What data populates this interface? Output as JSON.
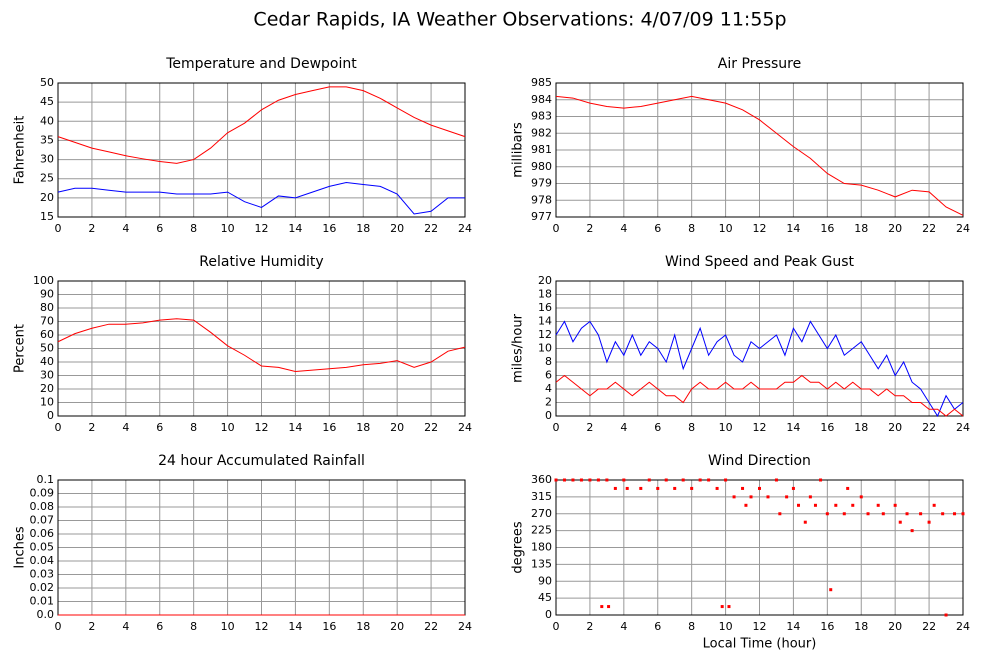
{
  "title": "Cedar Rapids, IA Weather Observations: 4/07/09 11:55p",
  "chart_data": [
    {
      "type": "line",
      "title": "Temperature and Dewpoint",
      "ylabel": "Fahrenheit",
      "x": [
        0,
        1,
        2,
        3,
        4,
        5,
        6,
        7,
        8,
        9,
        10,
        11,
        12,
        13,
        14,
        15,
        16,
        17,
        18,
        19,
        20,
        21,
        22,
        23,
        24
      ],
      "series": [
        {
          "name": "Temperature",
          "color": "#ff0000",
          "values": [
            36,
            34.5,
            33,
            32,
            31,
            30.2,
            29.5,
            29,
            30,
            33,
            37,
            39.5,
            43,
            45.5,
            47,
            48,
            49,
            49,
            48,
            46,
            43.5,
            41,
            39,
            37.5,
            36
          ]
        },
        {
          "name": "Dewpoint",
          "color": "#0000ff",
          "values": [
            21.5,
            22.5,
            22.5,
            22,
            21.5,
            21.5,
            21.5,
            21,
            21,
            21,
            21.5,
            19,
            17.5,
            20.5,
            20,
            21.5,
            23,
            24,
            23.5,
            23,
            21,
            15.8,
            16.5,
            20,
            20
          ]
        }
      ],
      "xlim": [
        0,
        24
      ],
      "xticks": [
        0,
        2,
        4,
        6,
        8,
        10,
        12,
        14,
        16,
        18,
        20,
        22,
        24
      ],
      "ylim": [
        15,
        50
      ],
      "yticks": [
        15,
        20,
        25,
        30,
        35,
        40,
        45,
        50
      ],
      "grid": true
    },
    {
      "type": "line",
      "title": "Air Pressure",
      "ylabel": "millibars",
      "x": [
        0,
        1,
        2,
        3,
        4,
        5,
        6,
        7,
        8,
        9,
        10,
        11,
        12,
        13,
        14,
        15,
        16,
        17,
        18,
        19,
        20,
        21,
        22,
        23,
        24
      ],
      "series": [
        {
          "name": "Pressure",
          "color": "#ff0000",
          "values": [
            984.2,
            984.1,
            983.8,
            983.6,
            983.5,
            983.6,
            983.8,
            984,
            984.2,
            984,
            983.8,
            983.4,
            982.8,
            982,
            981.2,
            980.5,
            979.6,
            979,
            978.9,
            978.6,
            978.2,
            978.6,
            978.5,
            977.6,
            977.1
          ]
        }
      ],
      "xlim": [
        0,
        24
      ],
      "xticks": [
        0,
        2,
        4,
        6,
        8,
        10,
        12,
        14,
        16,
        18,
        20,
        22,
        24
      ],
      "ylim": [
        977,
        985
      ],
      "yticks": [
        977,
        978,
        979,
        980,
        981,
        982,
        983,
        984,
        985
      ],
      "grid": true
    },
    {
      "type": "line",
      "title": "Relative Humidity",
      "ylabel": "Percent",
      "x": [
        0,
        1,
        2,
        3,
        4,
        5,
        6,
        7,
        8,
        9,
        10,
        11,
        12,
        13,
        14,
        15,
        16,
        17,
        18,
        19,
        20,
        21,
        22,
        23,
        24
      ],
      "series": [
        {
          "name": "Humidity",
          "color": "#ff0000",
          "values": [
            55,
            61,
            65,
            68,
            68,
            69,
            71,
            72,
            71,
            62,
            52,
            45,
            37,
            36,
            33,
            34,
            35,
            36,
            38,
            39,
            41,
            36,
            40,
            48,
            51
          ]
        }
      ],
      "xlim": [
        0,
        24
      ],
      "xticks": [
        0,
        2,
        4,
        6,
        8,
        10,
        12,
        14,
        16,
        18,
        20,
        22,
        24
      ],
      "ylim": [
        0,
        100
      ],
      "yticks": [
        0,
        10,
        20,
        30,
        40,
        50,
        60,
        70,
        80,
        90,
        100
      ],
      "grid": true
    },
    {
      "type": "line",
      "title": "Wind Speed and Peak Gust",
      "ylabel": "miles/hour",
      "x": [
        0,
        0.5,
        1,
        1.5,
        2,
        2.5,
        3,
        3.5,
        4,
        4.5,
        5,
        5.5,
        6,
        6.5,
        7,
        7.5,
        8,
        8.5,
        9,
        9.5,
        10,
        10.5,
        11,
        11.5,
        12,
        12.5,
        13,
        13.5,
        14,
        14.5,
        15,
        15.5,
        16,
        16.5,
        17,
        17.5,
        18,
        18.5,
        19,
        19.5,
        20,
        20.5,
        21,
        21.5,
        22,
        22.5,
        23,
        23.5,
        24
      ],
      "series": [
        {
          "name": "Peak Gust",
          "color": "#0000ff",
          "values": [
            12,
            14,
            11,
            13,
            14,
            12,
            8,
            11,
            9,
            12,
            9,
            11,
            10,
            8,
            12,
            7,
            10,
            13,
            9,
            11,
            12,
            9,
            8,
            11,
            10,
            11,
            12,
            9,
            13,
            11,
            14,
            12,
            10,
            12,
            9,
            10,
            11,
            9,
            7,
            9,
            6,
            8,
            5,
            4,
            2,
            0,
            3,
            1,
            2
          ]
        },
        {
          "name": "Wind Speed",
          "color": "#ff0000",
          "values": [
            5,
            6,
            5,
            4,
            3,
            4,
            4,
            5,
            4,
            3,
            4,
            5,
            4,
            3,
            3,
            2,
            4,
            5,
            4,
            4,
            5,
            4,
            4,
            5,
            4,
            4,
            4,
            5,
            5,
            6,
            5,
            5,
            4,
            5,
            4,
            5,
            4,
            4,
            3,
            4,
            3,
            3,
            2,
            2,
            1,
            1,
            0,
            1,
            0
          ]
        }
      ],
      "xlim": [
        0,
        24
      ],
      "xticks": [
        0,
        2,
        4,
        6,
        8,
        10,
        12,
        14,
        16,
        18,
        20,
        22,
        24
      ],
      "ylim": [
        0,
        20
      ],
      "yticks": [
        0,
        2,
        4,
        6,
        8,
        10,
        12,
        14,
        16,
        18,
        20
      ],
      "grid": true
    },
    {
      "type": "line",
      "title": "24 hour Accumulated Rainfall",
      "ylabel": "Inches",
      "x": [
        0,
        24
      ],
      "series": [
        {
          "name": "Rainfall",
          "color": "#ff0000",
          "values": [
            0,
            0
          ]
        }
      ],
      "xlim": [
        0,
        24
      ],
      "xticks": [
        0,
        2,
        4,
        6,
        8,
        10,
        12,
        14,
        16,
        18,
        20,
        22,
        24
      ],
      "ylim": [
        0,
        0.1
      ],
      "yticks": [
        {
          "value": 0,
          "label": "0.0"
        },
        0.01,
        0.02,
        0.03,
        0.04,
        0.05,
        0.06,
        0.07,
        0.08,
        0.09,
        0.1
      ],
      "grid": true
    },
    {
      "type": "scatter",
      "title": "Wind Direction",
      "ylabel": "degrees",
      "xlabel": "Local Time (hour)",
      "x": [
        0,
        0.5,
        1,
        1.5,
        2,
        2.5,
        2.7,
        3,
        3.1,
        3.5,
        4,
        4.2,
        5,
        5.5,
        6,
        6.5,
        7,
        7.5,
        8,
        8.5,
        9,
        9.5,
        9.8,
        10,
        10.2,
        10.5,
        11,
        11.2,
        11.5,
        12,
        12.5,
        13,
        13.2,
        13.6,
        14,
        14.3,
        14.7,
        15,
        15.3,
        15.6,
        16,
        16.2,
        16.5,
        17,
        17.2,
        17.5,
        18,
        18.4,
        19,
        19.3,
        20,
        20.3,
        20.7,
        21,
        21.5,
        22,
        22.3,
        22.8,
        23,
        23.5,
        24
      ],
      "series": [
        {
          "name": "Direction",
          "color": "#ff0000",
          "values": [
            360,
            360,
            360,
            360,
            360,
            360,
            22.5,
            360,
            22.5,
            337.5,
            360,
            337.5,
            337.5,
            360,
            337.5,
            360,
            337.5,
            360,
            337.5,
            360,
            360,
            337.5,
            22.5,
            360,
            22.5,
            315,
            337.5,
            292.5,
            315,
            337.5,
            315,
            360,
            270,
            315,
            337.5,
            292.5,
            247.5,
            315,
            292.5,
            360,
            270,
            67.5,
            292.5,
            270,
            337.5,
            292.5,
            315,
            270,
            292.5,
            270,
            292.5,
            247.5,
            270,
            225,
            270,
            247.5,
            292.5,
            270,
            0,
            270,
            270
          ]
        }
      ],
      "xlim": [
        0,
        24
      ],
      "xticks": [
        0,
        2,
        4,
        6,
        8,
        10,
        12,
        14,
        16,
        18,
        20,
        22,
        24
      ],
      "ylim": [
        0,
        360
      ],
      "yticks": [
        0,
        45,
        90,
        135,
        180,
        225,
        270,
        315,
        360
      ],
      "grid": true
    }
  ]
}
